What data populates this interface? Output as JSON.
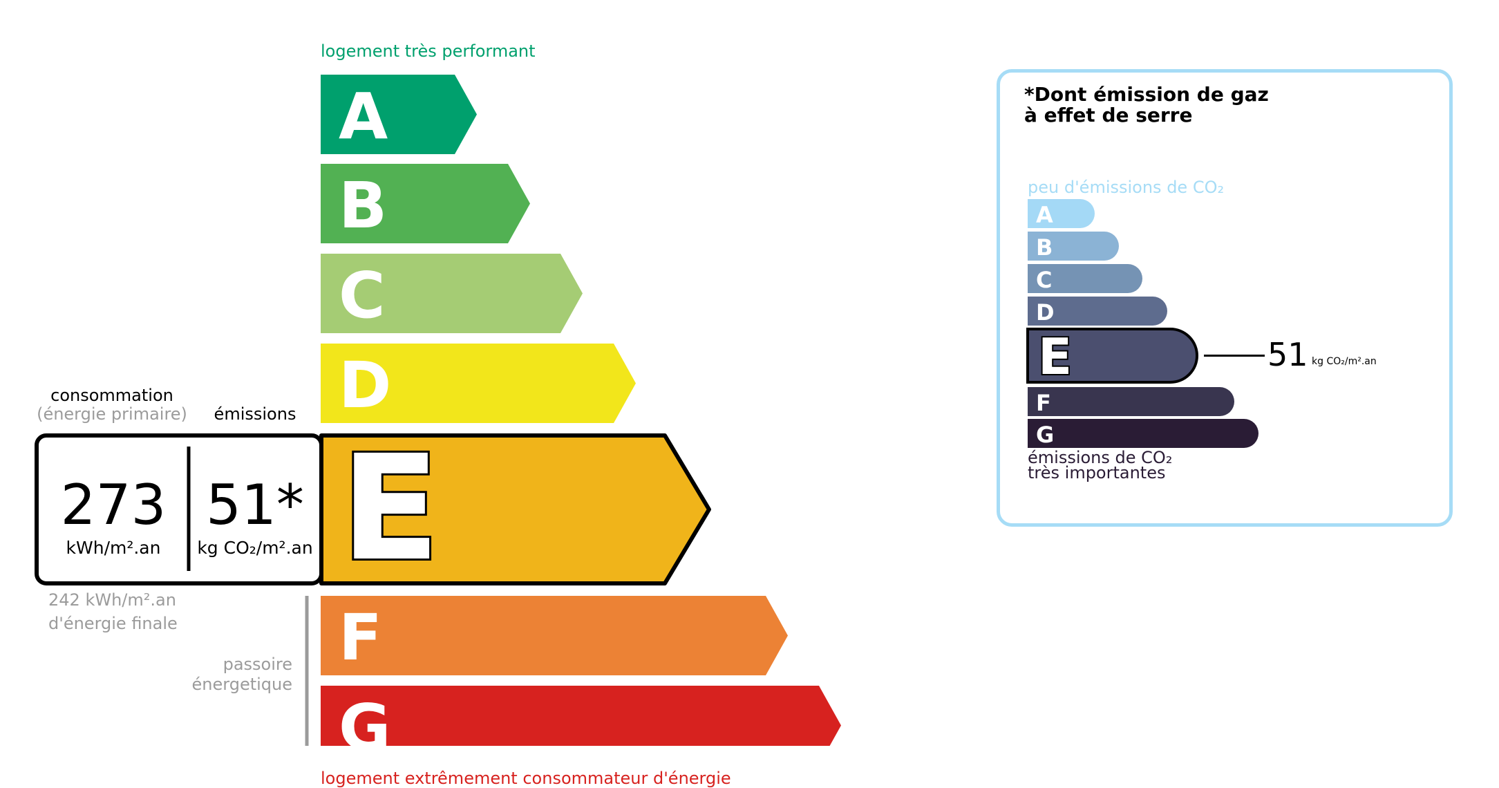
{
  "energy_scale": {
    "top_label": "logement très performant",
    "bottom_label": "logement extrêmement consommateur d'énergie",
    "top_label_color": "#00a06d",
    "bottom_label_color": "#d7221f",
    "classes": [
      {
        "letter": "A",
        "color": "#00a06d"
      },
      {
        "letter": "B",
        "color": "#52b153"
      },
      {
        "letter": "C",
        "color": "#a5cc74"
      },
      {
        "letter": "D",
        "color": "#f2e61b"
      },
      {
        "letter": "E",
        "color": "#f0b41a"
      },
      {
        "letter": "F",
        "color": "#ec8235"
      },
      {
        "letter": "G",
        "color": "#d7221f"
      }
    ],
    "current_class": "E",
    "consumption_label": "consommation",
    "consumption_sublabel": "(énergie primaire)",
    "emissions_label": "émissions",
    "consumption_value": "273",
    "consumption_unit": "kWh/m².an",
    "emissions_value": "51*",
    "emissions_unit": "kg CO₂/m².an",
    "final_energy_line1": "242 kWh/m².an",
    "final_energy_line2": "d'énergie finale",
    "passoire_line1": "passoire",
    "passoire_line2": "énergetique"
  },
  "ges_panel": {
    "title_line1": "*Dont émission de gaz",
    "title_line2": "à effet de serre",
    "top_label": "peu d'émissions de CO₂",
    "bottom_label_line1": "émissions de CO₂",
    "bottom_label_line2": "très importantes",
    "border_color": "#a6dcf6",
    "classes": [
      {
        "letter": "A",
        "color": "#a4d9f6"
      },
      {
        "letter": "B",
        "color": "#8bb3d5"
      },
      {
        "letter": "C",
        "color": "#7593b4"
      },
      {
        "letter": "D",
        "color": "#5e6c8e"
      },
      {
        "letter": "E",
        "color": "#4b4f6f"
      },
      {
        "letter": "F",
        "color": "#39354f"
      },
      {
        "letter": "G",
        "color": "#2a1c35"
      }
    ],
    "current_class": "E",
    "value": "51",
    "unit": "kg CO₂/m².an"
  }
}
